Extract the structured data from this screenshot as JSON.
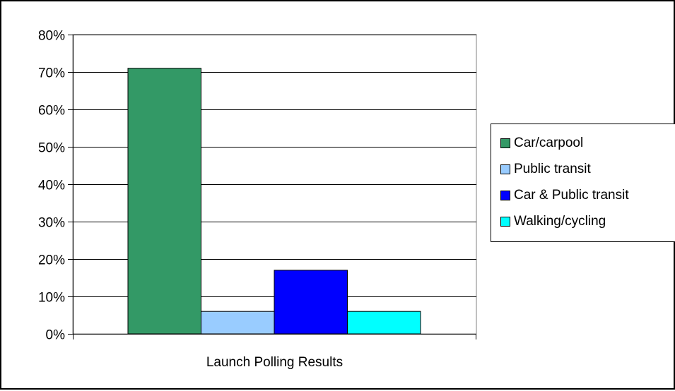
{
  "chart_data": {
    "type": "bar",
    "categories": [
      "Launch Polling Results"
    ],
    "series": [
      {
        "name": "Car/carpool",
        "values": [
          71
        ],
        "color": "#339966"
      },
      {
        "name": "Public transit",
        "values": [
          6
        ],
        "color": "#99ccff"
      },
      {
        "name": "Car & Public transit",
        "values": [
          17
        ],
        "color": "#0000ff"
      },
      {
        "name": "Walking/cycling",
        "values": [
          6
        ],
        "color": "#00ffff"
      }
    ],
    "title": "",
    "xlabel": "",
    "ylabel": "",
    "ylim": [
      0,
      80
    ],
    "yticks": [
      "0%",
      "10%",
      "20%",
      "30%",
      "40%",
      "50%",
      "60%",
      "70%",
      "80%"
    ],
    "grid": true,
    "legend": "right"
  }
}
